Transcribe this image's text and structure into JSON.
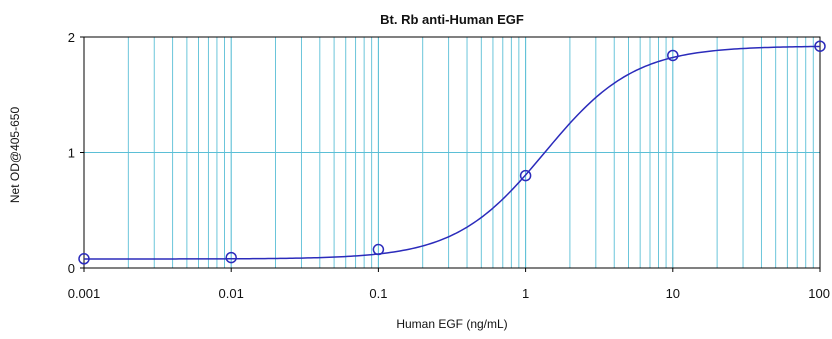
{
  "chart_data": {
    "type": "scatter",
    "title": "Bt. Rb anti-Human EGF",
    "xlabel": "Human EGF (ng/mL)",
    "ylabel": "Net OD@405-650",
    "x_scale": "log",
    "xlim": [
      0.001,
      100
    ],
    "ylim": [
      0,
      2
    ],
    "x_ticks": [
      0.001,
      0.01,
      0.1,
      1,
      10,
      100
    ],
    "x_tick_labels": [
      "0.001",
      "0.01",
      "0.1",
      "1",
      "10",
      "100"
    ],
    "y_ticks": [
      0,
      1,
      2
    ],
    "y_tick_labels": [
      "0",
      "1",
      "2"
    ],
    "grid": true,
    "legend": "none",
    "series": [
      {
        "x": [
          0.001,
          0.01,
          0.1,
          1,
          10,
          100
        ],
        "y": [
          0.08,
          0.09,
          0.16,
          0.8,
          1.84,
          1.92
        ],
        "marker": "open-circle",
        "fit": "four-parameter-logistic"
      }
    ],
    "colors": {
      "grid": "#5bbfd6",
      "curve": "#2b2bbb",
      "marker": "#2b2bbb",
      "frame": "#000000"
    }
  }
}
